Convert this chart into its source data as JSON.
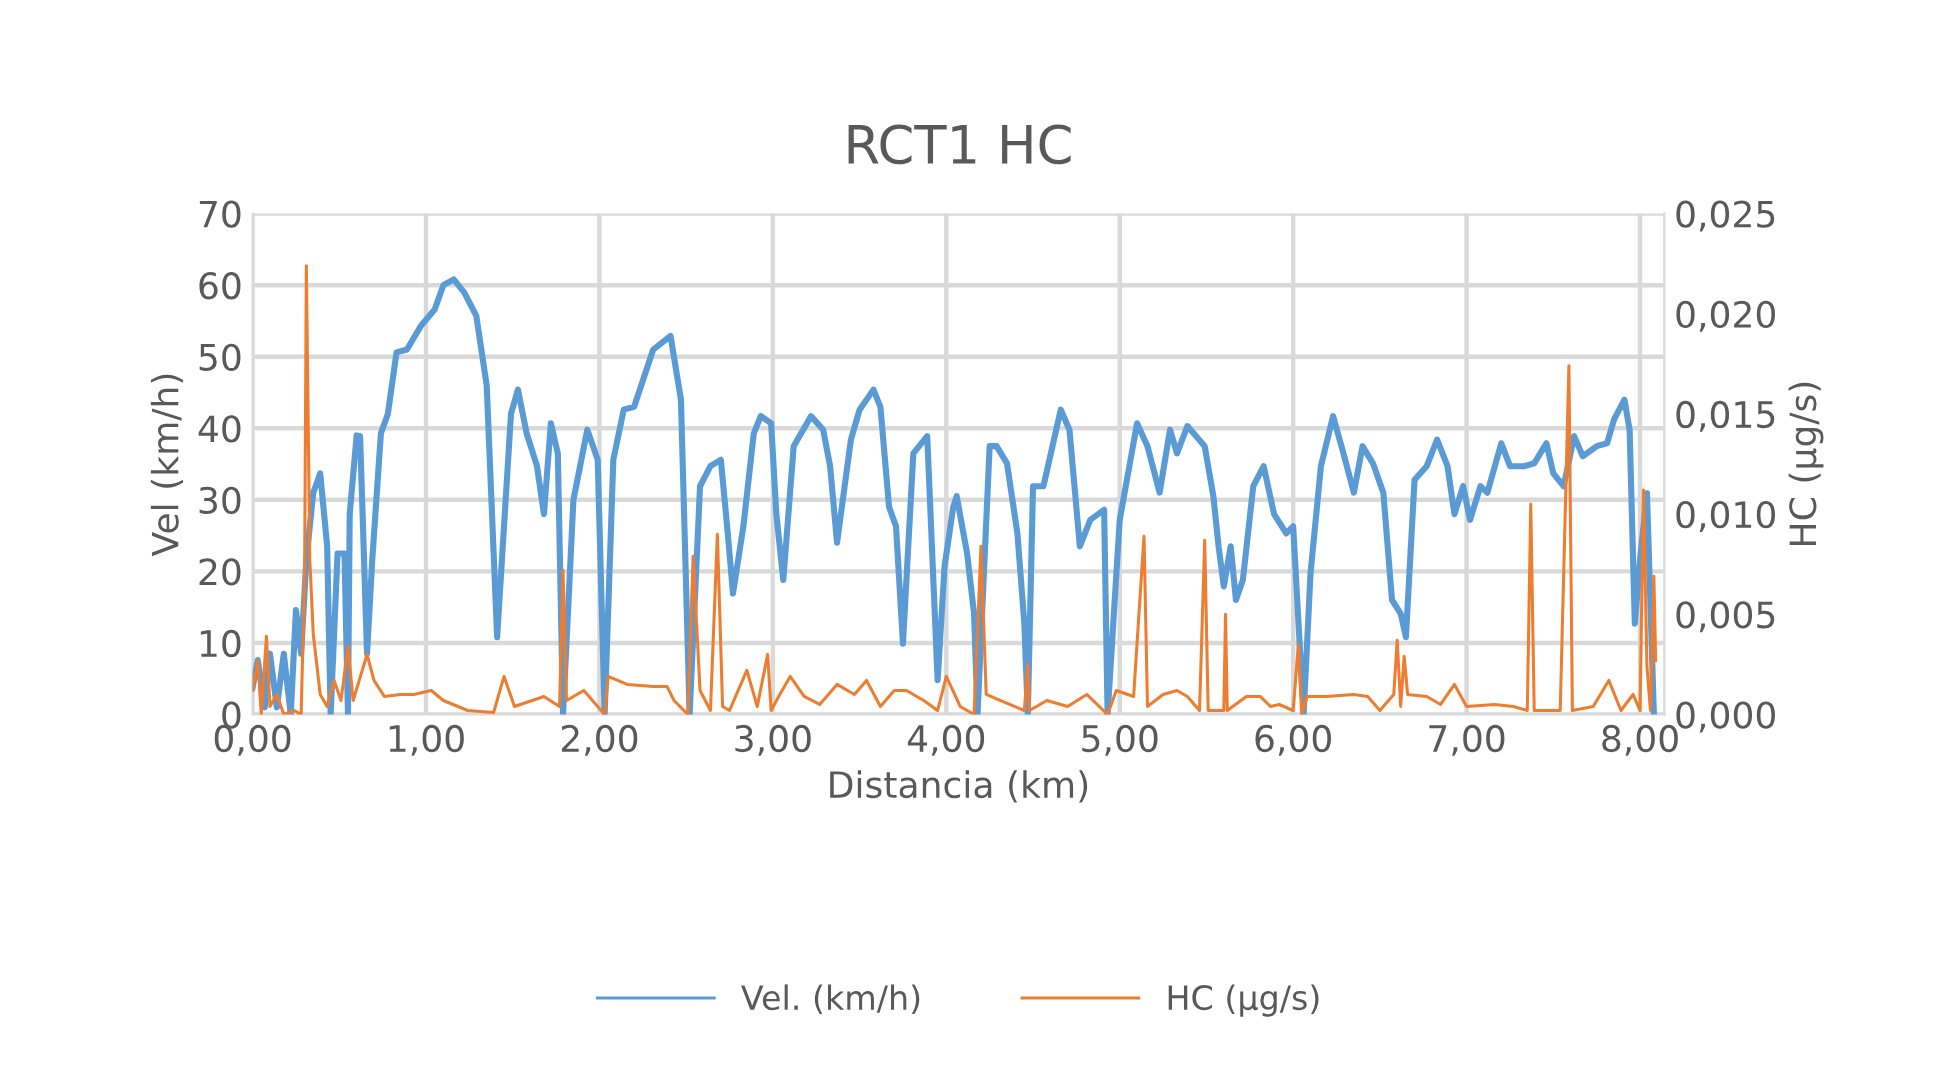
{
  "chart_data": {
    "type": "line",
    "title": "RCT1 HC",
    "xlabel": "Distancia (km)",
    "ylabel": "Vel (km/h)",
    "y2label": "HC (µg/s)",
    "xlim": [
      0,
      8.14
    ],
    "xticks": [
      {
        "value": 0,
        "label": "0,00"
      },
      {
        "value": 1,
        "label": "1,00"
      },
      {
        "value": 2,
        "label": "2,00"
      },
      {
        "value": 3,
        "label": "3,00"
      },
      {
        "value": 4,
        "label": "4,00"
      },
      {
        "value": 5,
        "label": "5,00"
      },
      {
        "value": 6,
        "label": "6,00"
      },
      {
        "value": 7,
        "label": "7,00"
      },
      {
        "value": 8,
        "label": "8,00"
      }
    ],
    "ylim": [
      0,
      70
    ],
    "yticks": [
      0,
      10,
      20,
      30,
      40,
      50,
      60,
      70
    ],
    "y2lim": [
      0,
      0.025
    ],
    "y2ticks": [
      {
        "value": 0,
        "label": "0,000"
      },
      {
        "value": 0.005,
        "label": "0,005"
      },
      {
        "value": 0.01,
        "label": "0,010"
      },
      {
        "value": 0.015,
        "label": "0,015"
      },
      {
        "value": 0.02,
        "label": "0,020"
      },
      {
        "value": 0.025,
        "label": "0,025"
      }
    ],
    "grid": true,
    "legend": "bottom",
    "marker": "none",
    "line_style": "solid",
    "series": [
      {
        "name": "Vel. (km/h)",
        "color": "#5b9bd5",
        "x": [
          0,
          0.03,
          0.07,
          0.1,
          0.14,
          0.18,
          0.22,
          0.25,
          0.28,
          0.31,
          0.35,
          0.39,
          0.43,
          0.45,
          0.49,
          0.53,
          0.55,
          0.56,
          0.6,
          0.62,
          0.66,
          0.69,
          0.74,
          0.78,
          0.83,
          0.89,
          0.97,
          1.05,
          1.1,
          1.16,
          1.22,
          1.29,
          1.35,
          1.41,
          1.49,
          1.53,
          1.58,
          1.64,
          1.68,
          1.72,
          1.76,
          1.79,
          1.85,
          1.93,
          1.99,
          2.03,
          2.08,
          2.14,
          2.2,
          2.31,
          2.41,
          2.47,
          2.52,
          2.58,
          2.64,
          2.7,
          2.74,
          2.77,
          2.83,
          2.89,
          2.93,
          2.99,
          3.02,
          3.06,
          3.12,
          3.22,
          3.29,
          3.33,
          3.37,
          3.45,
          3.5,
          3.58,
          3.62,
          3.67,
          3.71,
          3.75,
          3.81,
          3.89,
          3.95,
          3.99,
          4.04,
          4.06,
          4.12,
          4.16,
          4.18,
          4.25,
          4.29,
          4.35,
          4.41,
          4.45,
          4.47,
          4.5,
          4.56,
          4.66,
          4.71,
          4.77,
          4.83,
          4.91,
          4.93,
          5.0,
          5.1,
          5.16,
          5.23,
          5.29,
          5.33,
          5.39,
          5.49,
          5.54,
          5.57,
          5.6,
          5.64,
          5.67,
          5.71,
          5.77,
          5.83,
          5.89,
          5.96,
          6.0,
          6.06,
          6.1,
          6.16,
          6.23,
          6.29,
          6.35,
          6.4,
          6.46,
          6.52,
          6.57,
          6.62,
          6.65,
          6.7,
          6.77,
          6.83,
          6.89,
          6.93,
          6.98,
          7.02,
          7.08,
          7.12,
          7.2,
          7.25,
          7.33,
          7.39,
          7.46,
          7.5,
          7.56,
          7.62,
          7.67,
          7.75,
          7.81,
          7.85,
          7.91,
          7.94,
          7.97,
          8.0,
          8.04,
          8.08
        ],
        "values": [
          3.8,
          7.6,
          1,
          8.5,
          1,
          8.5,
          0,
          14.6,
          8.5,
          21.6,
          31,
          33.7,
          23.5,
          0,
          22.5,
          22.5,
          0,
          28,
          39,
          38.9,
          8.5,
          21.6,
          39.3,
          42,
          50.6,
          51,
          54.3,
          56.6,
          60,
          60.8,
          59,
          55.7,
          46,
          10.8,
          42,
          45.4,
          39.3,
          34.7,
          28,
          40.7,
          36.5,
          0,
          30,
          39.8,
          35.6,
          0,
          35.6,
          42.6,
          43,
          51,
          52.9,
          44,
          0,
          31.9,
          34.7,
          35.6,
          25.3,
          16.9,
          26.3,
          39.3,
          41.7,
          40.7,
          28,
          18.8,
          37.5,
          41.7,
          39.8,
          34.7,
          24,
          38.4,
          42.6,
          45.4,
          43,
          29,
          26.3,
          9.9,
          36.5,
          38.9,
          4.8,
          20.7,
          29,
          30.5,
          22.5,
          14.1,
          0,
          37.5,
          37.5,
          35.1,
          25.3,
          12.7,
          0,
          31.9,
          31.9,
          42.6,
          39.8,
          23.5,
          27.2,
          28.6,
          0,
          27.2,
          40.7,
          37.5,
          31,
          39.8,
          36.5,
          40.3,
          37.5,
          30.5,
          23.5,
          17.9,
          23.5,
          16,
          18.8,
          31.9,
          34.7,
          28,
          25.3,
          26.3,
          0,
          19.7,
          34.7,
          41.7,
          36.5,
          31,
          37.5,
          35.1,
          31,
          16,
          14.1,
          10.8,
          32.8,
          34.7,
          38.4,
          34.7,
          28,
          31.9,
          27.2,
          31.9,
          31,
          37.9,
          34.7,
          34.7,
          35.1,
          37.9,
          33.7,
          31.9,
          38.9,
          36.1,
          37.5,
          37.9,
          41.2,
          44,
          39.8,
          12.7,
          21.6,
          30.9,
          0
        ]
      },
      {
        "name": "HC (µg/s)",
        "color": "#ed7d31",
        "axis": "y2",
        "x": [
          0,
          0.03,
          0.05,
          0.08,
          0.1,
          0.14,
          0.18,
          0.24,
          0.28,
          0.3,
          0.31,
          0.33,
          0.35,
          0.39,
          0.43,
          0.47,
          0.51,
          0.55,
          0.58,
          0.66,
          0.7,
          0.76,
          0.85,
          0.93,
          1.03,
          1.1,
          1.24,
          1.39,
          1.45,
          1.51,
          1.68,
          1.77,
          1.79,
          1.81,
          1.91,
          2.03,
          2.05,
          2.16,
          2.31,
          2.39,
          2.43,
          2.51,
          2.54,
          2.58,
          2.64,
          2.68,
          2.71,
          2.75,
          2.81,
          2.85,
          2.91,
          2.97,
          2.99,
          3.04,
          3.1,
          3.18,
          3.27,
          3.37,
          3.47,
          3.54,
          3.62,
          3.7,
          3.77,
          3.87,
          3.95,
          4.0,
          4.08,
          4.16,
          4.2,
          4.23,
          4.31,
          4.45,
          4.47,
          4.48,
          4.58,
          4.7,
          4.81,
          4.93,
          4.98,
          5.08,
          5.14,
          5.16,
          5.25,
          5.33,
          5.39,
          5.46,
          5.49,
          5.51,
          5.6,
          5.61,
          5.62,
          5.73,
          5.81,
          5.87,
          5.92,
          6.0,
          6.03,
          6.05,
          6.08,
          6.19,
          6.35,
          6.43,
          6.5,
          6.58,
          6.6,
          6.62,
          6.64,
          6.66,
          6.77,
          6.85,
          6.93,
          7.0,
          7.16,
          7.27,
          7.35,
          7.37,
          7.39,
          7.54,
          7.59,
          7.61,
          7.73,
          7.82,
          7.89,
          7.96,
          8.0,
          8.02,
          8.04,
          8.06,
          8.08,
          8.09
        ],
        "values": [
          0.0012,
          0.0027,
          0,
          0.0039,
          0.0004,
          0.001,
          0,
          0.0002,
          0,
          0.007,
          0.0224,
          0.0077,
          0.004,
          0.001,
          0.0004,
          0.0017,
          0.0007,
          0.0034,
          0.0007,
          0.003,
          0.0017,
          0.0009,
          0.001,
          0.001,
          0.0012,
          0.0007,
          0.0002,
          0.0001,
          0.0019,
          0.0004,
          0.0009,
          0.0004,
          0.0072,
          0.0007,
          0.0012,
          0,
          0.0019,
          0.0015,
          0.0014,
          0.0014,
          0.0007,
          0,
          0.0079,
          0.0012,
          0.0002,
          0.009,
          0.0004,
          0.0002,
          0.0014,
          0.0022,
          0.0004,
          0.003,
          0.0002,
          0.001,
          0.0019,
          0.0009,
          0.0005,
          0.0015,
          0.001,
          0.0017,
          0.0004,
          0.0012,
          0.0012,
          0.0007,
          0.0002,
          0.0019,
          0.0004,
          0,
          0.0084,
          0.001,
          0.0007,
          0.0002,
          0.0025,
          0.0002,
          0.0007,
          0.0004,
          0.001,
          0,
          0.0012,
          0.0009,
          0.0089,
          0.0004,
          0.001,
          0.0012,
          0.0009,
          0.0002,
          0.0087,
          0.0002,
          0.0002,
          0.005,
          0.0002,
          0.0009,
          0.0009,
          0.0004,
          0.0005,
          0.0002,
          0.0035,
          0,
          0.0009,
          0.0009,
          0.001,
          0.0009,
          0.0002,
          0.001,
          0.0037,
          0.0004,
          0.0029,
          0.001,
          0.0009,
          0.0005,
          0.0015,
          0.0004,
          0.0005,
          0.0004,
          0.0002,
          0.0105,
          0.0002,
          0.0002,
          0.0174,
          0.0002,
          0.0004,
          0.0017,
          0.0002,
          0.001,
          0.0002,
          0.0112,
          0.0024,
          0.0002,
          0.0069,
          0.0027
        ]
      }
    ]
  }
}
